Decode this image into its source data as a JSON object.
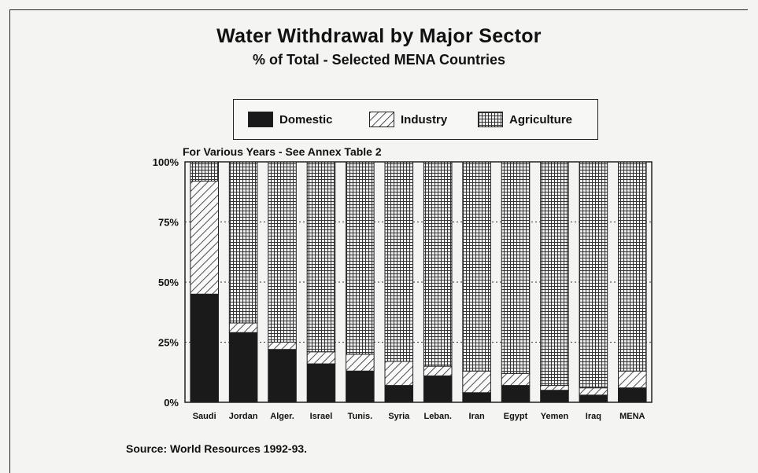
{
  "chart_data": {
    "type": "bar",
    "stacked": true,
    "title": "Water Withdrawal by Major Sector",
    "subtitle": "% of Total - Selected MENA Countries",
    "note": "For Various Years - See Annex Table 2",
    "source": "Source: World Resources 1992-93.",
    "categories": [
      "Saudi",
      "Jordan",
      "Alger.",
      "Israel",
      "Tunis.",
      "Syria",
      "Leban.",
      "Iran",
      "Egypt",
      "Yemen",
      "Iraq",
      "MENA"
    ],
    "y_tick_labels": [
      "0%",
      "25%",
      "50%",
      "75%",
      "100%"
    ],
    "y_ticks": [
      0,
      25,
      50,
      75,
      100
    ],
    "ylim": [
      0,
      100
    ],
    "grid": true,
    "legend_position": "top-center",
    "series": [
      {
        "name": "Domestic",
        "values": [
          45,
          29,
          22,
          16,
          13,
          7,
          11,
          4,
          7,
          5,
          3,
          6
        ]
      },
      {
        "name": "Industry",
        "values": [
          47,
          4,
          3,
          5,
          7,
          10,
          4,
          9,
          5,
          2,
          3,
          7
        ]
      },
      {
        "name": "Agriculture",
        "values": [
          8,
          67,
          75,
          79,
          80,
          83,
          85,
          87,
          88,
          93,
          94,
          87
        ]
      }
    ],
    "colors": {
      "domestic": "#1a1a1a",
      "stroke": "#222222",
      "background": "#f4f4f2"
    }
  }
}
